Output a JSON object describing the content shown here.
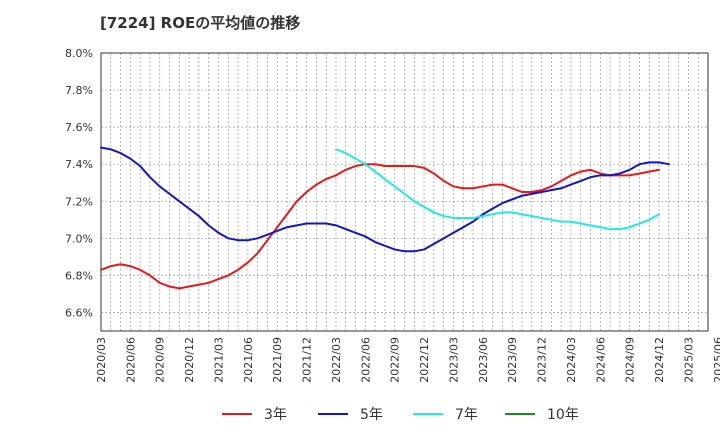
{
  "chart_data": {
    "type": "line",
    "title": "[7224]  ROEの平均値の推移",
    "xlabel": "",
    "ylabel": "",
    "ylim": [
      6.5,
      8.0
    ],
    "yticks": [
      6.6,
      6.8,
      7.0,
      7.2,
      7.4,
      7.6,
      7.8,
      8.0
    ],
    "ytick_labels": [
      "6.6%",
      "6.8%",
      "7.0%",
      "7.2%",
      "7.4%",
      "7.6%",
      "7.8%",
      "8.0%"
    ],
    "x_start": "2020/03",
    "xtick_labels": [
      "2020/03",
      "2020/06",
      "2020/09",
      "2020/12",
      "2021/03",
      "2021/06",
      "2021/09",
      "2021/12",
      "2022/03",
      "2022/06",
      "2022/09",
      "2022/12",
      "2023/03",
      "2023/06",
      "2023/09",
      "2023/12",
      "2024/03",
      "2024/06",
      "2024/09",
      "2024/12",
      "2025/03",
      "2025/06"
    ],
    "x_count": 63,
    "grid": true,
    "legend_position": "bottom",
    "series": [
      {
        "name": "3年",
        "color": "#e8191a",
        "start_index": 0,
        "values": [
          6.83,
          6.85,
          6.86,
          6.85,
          6.83,
          6.8,
          6.76,
          6.74,
          6.73,
          6.74,
          6.75,
          6.76,
          6.78,
          6.8,
          6.83,
          6.87,
          6.92,
          6.99,
          7.06,
          7.13,
          7.2,
          7.25,
          7.29,
          7.32,
          7.34,
          7.37,
          7.39,
          7.4,
          7.4,
          7.39,
          7.39,
          7.39,
          7.39,
          7.38,
          7.35,
          7.31,
          7.28,
          7.27,
          7.27,
          7.28,
          7.29,
          7.29,
          7.27,
          7.25,
          7.25,
          7.26,
          7.28,
          7.31,
          7.34,
          7.36,
          7.37,
          7.35,
          7.34,
          7.34,
          7.34,
          7.35,
          7.36,
          7.37
        ]
      },
      {
        "name": "5年",
        "color": "#1515c8",
        "start_index": 0,
        "values": [
          7.49,
          7.48,
          7.46,
          7.43,
          7.39,
          7.33,
          7.28,
          7.24,
          7.2,
          7.16,
          7.12,
          7.07,
          7.03,
          7.0,
          6.99,
          6.99,
          7.0,
          7.02,
          7.04,
          7.06,
          7.07,
          7.08,
          7.08,
          7.08,
          7.07,
          7.05,
          7.03,
          7.01,
          6.98,
          6.96,
          6.94,
          6.93,
          6.93,
          6.94,
          6.97,
          7.0,
          7.03,
          7.06,
          7.09,
          7.13,
          7.16,
          7.19,
          7.21,
          7.23,
          7.24,
          7.25,
          7.26,
          7.27,
          7.29,
          7.31,
          7.33,
          7.34,
          7.34,
          7.35,
          7.37,
          7.4,
          7.41,
          7.41,
          7.4
        ]
      },
      {
        "name": "7年",
        "color": "#22e8e8",
        "start_index": 24,
        "values": [
          7.48,
          7.46,
          7.43,
          7.4,
          7.36,
          7.32,
          7.28,
          7.24,
          7.2,
          7.17,
          7.14,
          7.12,
          7.11,
          7.11,
          7.11,
          7.12,
          7.13,
          7.14,
          7.14,
          7.13,
          7.12,
          7.11,
          7.1,
          7.09,
          7.09,
          7.08,
          7.07,
          7.06,
          7.05,
          7.05,
          7.06,
          7.08,
          7.1,
          7.13
        ]
      },
      {
        "name": "10年",
        "color": "#1c8a1c",
        "start_index": 0,
        "values": []
      }
    ]
  }
}
